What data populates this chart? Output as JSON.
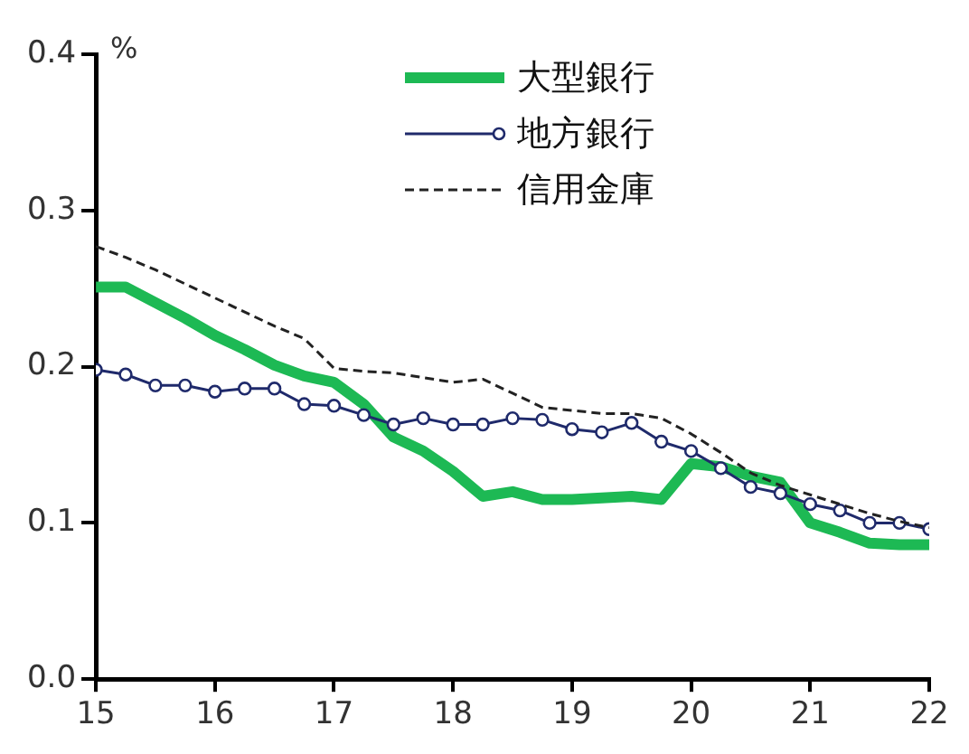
{
  "chart_data": {
    "type": "line",
    "ylabel": "%",
    "x": [
      15,
      15.25,
      15.5,
      15.75,
      16,
      16.25,
      16.5,
      16.75,
      17,
      17.25,
      17.5,
      17.75,
      18,
      18.25,
      18.5,
      18.75,
      19,
      19.25,
      19.5,
      19.75,
      20,
      20.25,
      20.5,
      20.75,
      21,
      21.25,
      21.5,
      21.75,
      22
    ],
    "series": [
      {
        "name": "大型銀行",
        "color": "#1db954",
        "line_style": "solid",
        "marker": "none",
        "values": [
          0.251,
          0.251,
          0.241,
          0.231,
          0.22,
          0.211,
          0.201,
          0.194,
          0.19,
          0.176,
          0.155,
          0.146,
          0.133,
          0.117,
          0.12,
          0.115,
          0.115,
          0.116,
          0.117,
          0.115,
          0.138,
          0.136,
          0.13,
          0.126,
          0.1,
          0.094,
          0.087,
          0.086,
          0.086
        ]
      },
      {
        "name": "地方銀行",
        "color": "#1f2a6b",
        "line_style": "solid",
        "marker": "circle",
        "values": [
          0.198,
          0.195,
          0.188,
          0.188,
          0.184,
          0.186,
          0.186,
          0.176,
          0.175,
          0.169,
          0.163,
          0.167,
          0.163,
          0.163,
          0.167,
          0.166,
          0.16,
          0.158,
          0.164,
          0.152,
          0.146,
          0.135,
          0.123,
          0.119,
          0.112,
          0.108,
          0.1,
          0.1,
          0.096
        ]
      },
      {
        "name": "信用金庫",
        "color": "#222222",
        "line_style": "dashed",
        "marker": "none",
        "values": [
          0.277,
          0.27,
          0.262,
          0.253,
          0.244,
          0.235,
          0.226,
          0.218,
          0.199,
          0.197,
          0.196,
          0.193,
          0.19,
          0.192,
          0.183,
          0.174,
          0.172,
          0.17,
          0.17,
          0.167,
          0.157,
          0.145,
          0.132,
          0.124,
          0.118,
          0.112,
          0.106,
          0.101,
          0.097
        ]
      }
    ],
    "xlim": [
      15,
      22
    ],
    "xticks": [
      15,
      16,
      17,
      18,
      19,
      20,
      21,
      22
    ],
    "ylim": [
      0,
      0.4
    ],
    "yticks": [
      {
        "value": 0,
        "label": "0.0"
      },
      {
        "value": 0.1,
        "label": "0.1"
      },
      {
        "value": 0.2,
        "label": "0.2"
      },
      {
        "value": 0.3,
        "label": "0.3"
      },
      {
        "value": 0.4,
        "label": "0.4"
      }
    ],
    "grid": false,
    "legend": "top right"
  }
}
